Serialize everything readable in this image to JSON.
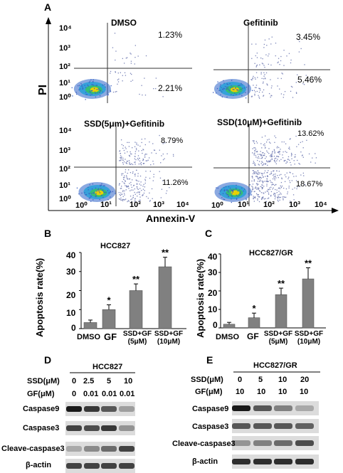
{
  "panel_labels": {
    "A": "A",
    "B": "B",
    "C": "C",
    "D": "D",
    "E": "E"
  },
  "flow": {
    "y_axis_label": "PI",
    "x_axis_label": "Annexin-V",
    "plots": [
      {
        "title": "DMSO",
        "upper_right": "1.23%",
        "lower_right": "2.21%"
      },
      {
        "title": "Gefitinib",
        "upper_right": "3.45%",
        "lower_right": "5.46%"
      },
      {
        "title": "SSD(5μm)+Gefitinib",
        "upper_right": "8.79%",
        "lower_right": "11.26%"
      },
      {
        "title": "SSD(10μM)+Gefitinib",
        "upper_right": "13.62%",
        "lower_right": "18.67%"
      }
    ],
    "y_ticks_top": [
      "10⁴",
      "10³",
      "10²",
      "10¹",
      "10⁰"
    ],
    "y_ticks_bottom": [
      "10⁴",
      "10³",
      "10²",
      "10¹",
      "10⁰"
    ],
    "x_ticks": [
      "10⁰",
      "10¹",
      "10²",
      "10³",
      "10⁴",
      "10⁰",
      "10¹",
      "10²",
      "10³",
      "10⁴"
    ],
    "colors": {
      "density": "#1f6fd0",
      "hot": "#e8d000"
    }
  },
  "chart_data": [
    {
      "type": "bar",
      "title": "HCC827",
      "ylabel": "Apoptosis rate(%)",
      "ylim": [
        0,
        40
      ],
      "yticks": [
        "0",
        "10",
        "20",
        "30",
        "40"
      ],
      "categories": [
        "DMSO",
        "GF",
        "SSD+GF (5μM)",
        "SSD+GF (10μM)"
      ],
      "values": [
        3.2,
        10,
        20,
        32.5
      ],
      "errors": [
        1.3,
        2.5,
        3.5,
        5
      ],
      "significance": [
        "",
        "*",
        "**",
        "**"
      ],
      "bar_color": "#808080"
    },
    {
      "type": "bar",
      "title": "HCC827/GR",
      "ylabel": "Apoptosis rate(%)",
      "ylim": [
        0,
        40
      ],
      "yticks": [
        "0",
        "10",
        "20",
        "30",
        "40"
      ],
      "categories": [
        "DMSO",
        "GF",
        "SSD+GF (5μM)",
        "SSD+GF (10μM)"
      ],
      "values": [
        2,
        5.5,
        18,
        26.5
      ],
      "errors": [
        1,
        2.5,
        3.5,
        6
      ],
      "significance": [
        "",
        "*",
        "**",
        "**"
      ],
      "bar_color": "#808080"
    }
  ],
  "blots": [
    {
      "cell_line": "HCC827",
      "ssd_label": "SSD(μM)",
      "gf_label": "GF(μM)",
      "ssd": [
        "0",
        "2.5",
        "5",
        "10"
      ],
      "gf": [
        "0",
        "0.01",
        "0.01",
        "0.01"
      ],
      "rows": [
        "Caspase9",
        "Caspase3",
        "Cleave-caspase3",
        "β-actin"
      ],
      "intensity": [
        [
          1,
          0.85,
          0.7,
          0.35
        ],
        [
          0.8,
          0.75,
          0.85,
          0.4
        ],
        [
          0.3,
          0.45,
          0.6,
          0.8
        ],
        [
          0.8,
          0.8,
          0.8,
          0.8
        ]
      ]
    },
    {
      "cell_line": "HCC827/GR",
      "ssd_label": "SSD(μM)",
      "gf_label": "GF(μM)",
      "ssd": [
        "0",
        "5",
        "10",
        "20"
      ],
      "gf": [
        "10",
        "10",
        "10",
        "10"
      ],
      "rows": [
        "Caspase9",
        "Caspase3",
        "Cleave-caspase3",
        "β-actin"
      ],
      "intensity": [
        [
          1,
          0.7,
          0.5,
          0.3
        ],
        [
          0.7,
          0.7,
          0.7,
          0.65
        ],
        [
          0.4,
          0.5,
          0.6,
          0.75
        ],
        [
          0.9,
          0.9,
          0.9,
          0.9
        ]
      ]
    }
  ]
}
